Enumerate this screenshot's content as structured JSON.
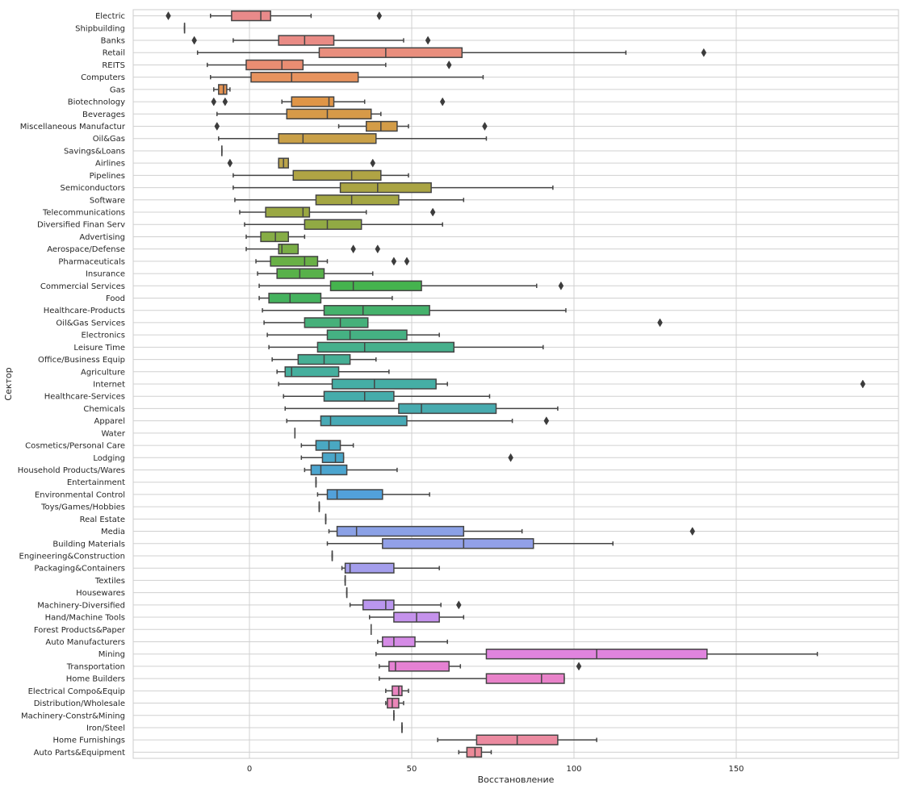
{
  "chart_data": {
    "type": "box",
    "orientation": "horizontal",
    "xlabel": "Восстановление",
    "ylabel": "Сектор",
    "xlim": [
      -36,
      200
    ],
    "xticks": [
      0,
      50,
      100,
      150
    ],
    "grid": true,
    "categories": [
      {
        "name": "Electric",
        "color": "#e88a8a",
        "min": -12,
        "q1": -5.5,
        "median": 3.5,
        "q3": 6.5,
        "max": 19,
        "outliers": [
          -25,
          40
        ]
      },
      {
        "name": "Shipbuilding",
        "color": "#e88a88",
        "min": -20,
        "q1": -20,
        "median": -20,
        "q3": -20,
        "max": -20,
        "outliers": []
      },
      {
        "name": "Banks",
        "color": "#e98b85",
        "min": -5,
        "q1": 9,
        "median": 17,
        "q3": 26,
        "max": 47.5,
        "outliers": [
          -17,
          55
        ]
      },
      {
        "name": "Retail",
        "color": "#e98e7d",
        "min": -16,
        "q1": 21.5,
        "median": 42,
        "q3": 65.5,
        "max": 116,
        "outliers": [
          140
        ]
      },
      {
        "name": "REITS",
        "color": "#ea8d72",
        "min": -13,
        "q1": -1,
        "median": 10,
        "q3": 16.5,
        "max": 42,
        "outliers": [
          61.5
        ]
      },
      {
        "name": "Computers",
        "color": "#e7935e",
        "min": -12,
        "q1": 0.5,
        "median": 13,
        "q3": 33.5,
        "max": 72,
        "outliers": []
      },
      {
        "name": "Gas",
        "color": "#e39252",
        "min": -11,
        "q1": -9.5,
        "median": -8,
        "q3": -7,
        "max": -6,
        "outliers": []
      },
      {
        "name": "Biotechnology",
        "color": "#df9547",
        "min": 10,
        "q1": 13,
        "median": 24.5,
        "q3": 26,
        "max": 35.5,
        "outliers": [
          -11,
          -7.5,
          59.5
        ]
      },
      {
        "name": "Beverages",
        "color": "#d79a48",
        "min": -10,
        "q1": 11.5,
        "median": 24,
        "q3": 37.5,
        "max": 40.5,
        "outliers": []
      },
      {
        "name": "Miscellaneous Manufactur",
        "color": "#d39c47",
        "min": 27.5,
        "q1": 36,
        "median": 40.5,
        "q3": 45.5,
        "max": 49,
        "outliers": [
          -10,
          72.5
        ]
      },
      {
        "name": "Oil&Gas",
        "color": "#c9a048",
        "min": -9.5,
        "q1": 9,
        "median": 16.5,
        "q3": 39,
        "max": 73,
        "outliers": []
      },
      {
        "name": "Savings&Loans",
        "color": "#c4a248",
        "min": -8.5,
        "q1": -8.5,
        "median": -8.5,
        "q3": -8.5,
        "max": -8.5,
        "outliers": []
      },
      {
        "name": "Airlines",
        "color": "#bba44a",
        "min": 9,
        "q1": 9,
        "median": 10.5,
        "q3": 12,
        "max": 12,
        "outliers": [
          -6,
          38
        ]
      },
      {
        "name": "Pipelines",
        "color": "#b0a444",
        "min": -5,
        "q1": 13.5,
        "median": 31.5,
        "q3": 40.5,
        "max": 49,
        "outliers": []
      },
      {
        "name": "Semiconductors",
        "color": "#aaa443",
        "min": -5,
        "q1": 28,
        "median": 39.5,
        "q3": 56,
        "max": 93.5,
        "outliers": []
      },
      {
        "name": "Software",
        "color": "#a4a643",
        "min": -4.5,
        "q1": 20.5,
        "median": 31.5,
        "q3": 46,
        "max": 66,
        "outliers": []
      },
      {
        "name": "Telecommunications",
        "color": "#9aa843",
        "min": -3,
        "q1": 5,
        "median": 16.5,
        "q3": 18.5,
        "max": 36,
        "outliers": [
          56.5
        ]
      },
      {
        "name": "Diversified Finan Serv",
        "color": "#91aa44",
        "min": -1.5,
        "q1": 17,
        "median": 24,
        "q3": 34.5,
        "max": 59.5,
        "outliers": []
      },
      {
        "name": "Advertising",
        "color": "#86ad45",
        "min": -1,
        "q1": 3.5,
        "median": 8,
        "q3": 12,
        "max": 17,
        "outliers": []
      },
      {
        "name": "Aerospace/Defense",
        "color": "#7aae46",
        "min": -1,
        "q1": 9,
        "median": 10,
        "q3": 15,
        "max": 15,
        "outliers": [
          32,
          39.5
        ]
      },
      {
        "name": "Pharmaceuticals",
        "color": "#69b046",
        "min": 2,
        "q1": 6.5,
        "median": 17,
        "q3": 21,
        "max": 24,
        "outliers": [
          44.5,
          48.5
        ]
      },
      {
        "name": "Insurance",
        "color": "#58b14a",
        "min": 2.5,
        "q1": 8.5,
        "median": 15.5,
        "q3": 23,
        "max": 38,
        "outliers": []
      },
      {
        "name": "Commercial Services",
        "color": "#45b34e",
        "min": 3,
        "q1": 25,
        "median": 32,
        "q3": 53,
        "max": 88.5,
        "outliers": [
          96
        ]
      },
      {
        "name": "Food",
        "color": "#45b25e",
        "min": 3,
        "q1": 6,
        "median": 12.5,
        "q3": 22,
        "max": 44,
        "outliers": []
      },
      {
        "name": "Healthcare-Products",
        "color": "#45b26c",
        "min": 4,
        "q1": 23,
        "median": 35,
        "q3": 55.5,
        "max": 97.5,
        "outliers": []
      },
      {
        "name": "Oil&Gas Services",
        "color": "#46b07a",
        "min": 4.5,
        "q1": 17,
        "median": 28,
        "q3": 36.5,
        "max": 36.5,
        "outliers": [
          126.5
        ]
      },
      {
        "name": "Electronics",
        "color": "#45b183",
        "min": 5.5,
        "q1": 24,
        "median": 31,
        "q3": 48.5,
        "max": 58.5,
        "outliers": []
      },
      {
        "name": "Leisure Time",
        "color": "#46b08c",
        "min": 6,
        "q1": 21,
        "median": 35.5,
        "q3": 63,
        "max": 90.5,
        "outliers": []
      },
      {
        "name": "Office/Business Equip",
        "color": "#46af95",
        "min": 7,
        "q1": 15,
        "median": 23,
        "q3": 31,
        "max": 39,
        "outliers": []
      },
      {
        "name": "Agriculture",
        "color": "#46af9e",
        "min": 8.5,
        "q1": 11,
        "median": 13,
        "q3": 27.5,
        "max": 43,
        "outliers": []
      },
      {
        "name": "Internet",
        "color": "#45aea5",
        "min": 9,
        "q1": 25.5,
        "median": 38.5,
        "q3": 57.5,
        "max": 61,
        "outliers": [
          189
        ]
      },
      {
        "name": "Healthcare-Services",
        "color": "#46acab",
        "min": 10.5,
        "q1": 23,
        "median": 35.5,
        "q3": 44.5,
        "max": 74,
        "outliers": []
      },
      {
        "name": "Chemicals",
        "color": "#48abaf",
        "min": 11,
        "q1": 46,
        "median": 53,
        "q3": 76,
        "max": 95,
        "outliers": []
      },
      {
        "name": "Apparel",
        "color": "#48aab6",
        "min": 11.5,
        "q1": 22,
        "median": 25,
        "q3": 48.5,
        "max": 81,
        "outliers": [
          91.5
        ]
      },
      {
        "name": "Water",
        "color": "#4aa9bc",
        "min": 14,
        "q1": 14,
        "median": 14,
        "q3": 14,
        "max": 14,
        "outliers": []
      },
      {
        "name": "Cosmetics/Personal Care",
        "color": "#4aa8c2",
        "min": 16,
        "q1": 20.5,
        "median": 24.5,
        "q3": 28,
        "max": 32,
        "outliers": []
      },
      {
        "name": "Lodging",
        "color": "#4aa6c8",
        "min": 16,
        "q1": 22.5,
        "median": 26.5,
        "q3": 29,
        "max": 29,
        "outliers": [
          80.5
        ]
      },
      {
        "name": "Household Products/Wares",
        "color": "#4ca5cf",
        "min": 17,
        "q1": 19,
        "median": 22,
        "q3": 30,
        "max": 45.5,
        "outliers": []
      },
      {
        "name": "Entertainment",
        "color": "#4ea3d4",
        "min": 20.5,
        "q1": 20.5,
        "median": 20.5,
        "q3": 20.5,
        "max": 20.5,
        "outliers": []
      },
      {
        "name": "Environmental Control",
        "color": "#52a1db",
        "min": 21,
        "q1": 24,
        "median": 27,
        "q3": 41,
        "max": 55.5,
        "outliers": []
      },
      {
        "name": "Toys/Games/Hobbies",
        "color": "#7a9fe0",
        "min": 21.5,
        "q1": 21.5,
        "median": 21.5,
        "q3": 21.5,
        "max": 21.5,
        "outliers": []
      },
      {
        "name": "Real Estate",
        "color": "#7fa0e2",
        "min": 23.5,
        "q1": 23.5,
        "median": 23.5,
        "q3": 23.5,
        "max": 23.5,
        "outliers": []
      },
      {
        "name": "Media",
        "color": "#8ba1e6",
        "min": 24.5,
        "q1": 27,
        "median": 33,
        "q3": 66,
        "max": 84,
        "outliers": [
          136.5
        ]
      },
      {
        "name": "Building Materials",
        "color": "#92a0e8",
        "min": 24,
        "q1": 41,
        "median": 66,
        "q3": 87.5,
        "max": 112,
        "outliers": []
      },
      {
        "name": "Engineering&Construction",
        "color": "#999feb",
        "min": 25.5,
        "q1": 25.5,
        "median": 25.5,
        "q3": 25.5,
        "max": 25.5,
        "outliers": []
      },
      {
        "name": "Packaging&Containers",
        "color": "#a49eec",
        "min": 28.5,
        "q1": 29.5,
        "median": 31,
        "q3": 44.5,
        "max": 58.5,
        "outliers": []
      },
      {
        "name": "Textiles",
        "color": "#ab9ced",
        "min": 29.5,
        "q1": 29.5,
        "median": 29.5,
        "q3": 29.5,
        "max": 29.5,
        "outliers": []
      },
      {
        "name": "Housewares",
        "color": "#b29aee",
        "min": 30,
        "q1": 30,
        "median": 30,
        "q3": 30,
        "max": 30,
        "outliers": []
      },
      {
        "name": "Machinery-Diversified",
        "color": "#ba96ee",
        "min": 31,
        "q1": 35,
        "median": 42,
        "q3": 44.5,
        "max": 59,
        "outliers": [
          64.5
        ]
      },
      {
        "name": "Hand/Machine Tools",
        "color": "#c592ec",
        "min": 37,
        "q1": 44.5,
        "median": 51.5,
        "q3": 58.5,
        "max": 66,
        "outliers": []
      },
      {
        "name": "Forest Products&Paper",
        "color": "#cb8fea",
        "min": 37.5,
        "q1": 37.5,
        "median": 37.5,
        "q3": 37.5,
        "max": 37.5,
        "outliers": []
      },
      {
        "name": "Auto Manufacturers",
        "color": "#d58be6",
        "min": 39.5,
        "q1": 41,
        "median": 44.5,
        "q3": 51,
        "max": 61,
        "outliers": []
      },
      {
        "name": "Mining",
        "color": "#e084de",
        "min": 39,
        "q1": 73,
        "median": 107,
        "q3": 141,
        "max": 175,
        "outliers": []
      },
      {
        "name": "Transportation",
        "color": "#e581d3",
        "min": 40,
        "q1": 43,
        "median": 45,
        "q3": 61.5,
        "max": 65,
        "outliers": [
          101.5
        ]
      },
      {
        "name": "Home Builders",
        "color": "#e882c9",
        "min": 40,
        "q1": 73,
        "median": 90,
        "q3": 97,
        "max": 97,
        "outliers": []
      },
      {
        "name": "Electrical Compo&Equip",
        "color": "#e984c0",
        "min": 42,
        "q1": 44,
        "median": 46,
        "q3": 47,
        "max": 49,
        "outliers": []
      },
      {
        "name": "Distribution/Wholesale",
        "color": "#ea86b8",
        "min": 42,
        "q1": 42.5,
        "median": 44,
        "q3": 46,
        "max": 47.5,
        "outliers": []
      },
      {
        "name": "Machinery-Constr&Mining",
        "color": "#ea88b0",
        "min": 44.5,
        "q1": 44.5,
        "median": 44.5,
        "q3": 44.5,
        "max": 44.5,
        "outliers": []
      },
      {
        "name": "Iron/Steel",
        "color": "#eb89a8",
        "min": 47,
        "q1": 47,
        "median": 47,
        "q3": 47,
        "max": 47,
        "outliers": []
      },
      {
        "name": "Home Furnishings",
        "color": "#eb8aa0",
        "min": 58,
        "q1": 70,
        "median": 82.5,
        "q3": 95,
        "max": 107,
        "outliers": []
      },
      {
        "name": "Auto Parts&Equipment",
        "color": "#eb8a98",
        "min": 64.5,
        "q1": 67,
        "median": 69.5,
        "q3": 71.5,
        "max": 74.5,
        "outliers": []
      }
    ]
  }
}
